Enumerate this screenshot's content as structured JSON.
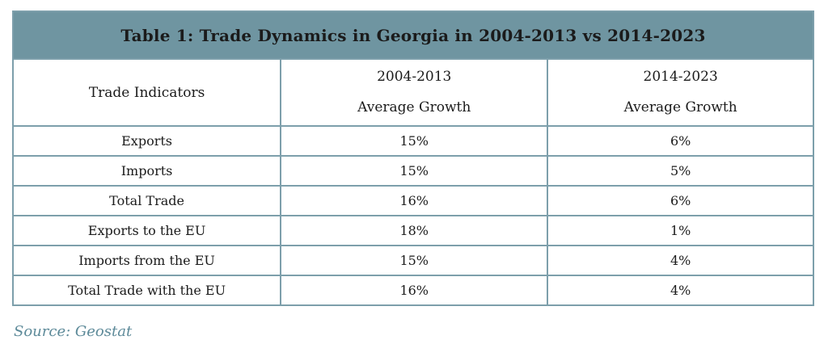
{
  "table": {
    "title": "Table 1: Trade Dynamics in Georgia in 2004-2013 vs 2014-2023",
    "columns": {
      "indicator_header": "Trade Indicators",
      "period1_line1": "2004-2013",
      "period1_line2": "Average Growth",
      "period2_line1": "2014-2023",
      "period2_line2": "Average Growth"
    },
    "rows": [
      {
        "indicator": "Exports",
        "period1": "15%",
        "period2": "6%"
      },
      {
        "indicator": "Imports",
        "period1": "15%",
        "period2": "5%"
      },
      {
        "indicator": "Total Trade",
        "period1": "16%",
        "period2": "6%"
      },
      {
        "indicator": "Exports to the EU",
        "period1": "18%",
        "period2": "1%"
      },
      {
        "indicator": "Imports from the EU",
        "period1": "15%",
        "period2": "4%"
      },
      {
        "indicator": "Total Trade with the EU",
        "period1": "16%",
        "period2": "4%"
      }
    ]
  },
  "source_note": "Source: Geostat",
  "colors": {
    "title_bar_bg": "#6f95a1",
    "title_text": "#ffffff",
    "table_border": "#7d9fab",
    "cell_text": "#1b1b1b",
    "source_text": "#5d8a99"
  }
}
